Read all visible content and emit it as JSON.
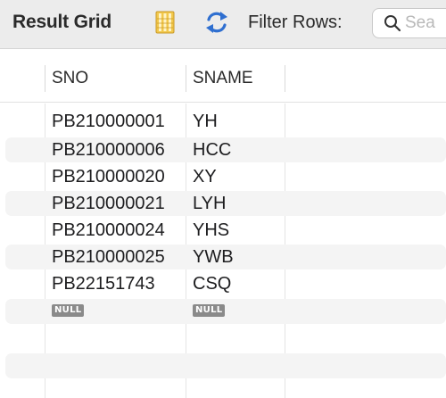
{
  "toolbar": {
    "title": "Result Grid",
    "grid_view_icon": "grid-view-icon",
    "refresh_icon": "refresh-icon",
    "filter_label": "Filter Rows:",
    "search_placeholder": "Sea",
    "search_icon": "search-icon"
  },
  "grid": {
    "columns": [
      "SNO",
      "SNAME"
    ],
    "rows": [
      {
        "sno": "PB210000001",
        "sname": "YH"
      },
      {
        "sno": "PB210000006",
        "sname": "HCC"
      },
      {
        "sno": "PB210000020",
        "sname": "XY"
      },
      {
        "sno": "PB210000021",
        "sname": "LYH"
      },
      {
        "sno": "PB210000024",
        "sname": "YHS"
      },
      {
        "sno": "PB210000025",
        "sname": "YWB"
      },
      {
        "sno": "PB22151743",
        "sname": "CSQ"
      }
    ],
    "null_row": {
      "sno": "NULL",
      "sname": "NULL"
    }
  },
  "colors": {
    "toolbar_bg": "#ececec",
    "stripe_bg": "#f4f4f4",
    "null_badge": "#8a8a8a",
    "refresh_blue": "#2f6fd0",
    "grid_icon_yellow": "#f2c84b"
  }
}
